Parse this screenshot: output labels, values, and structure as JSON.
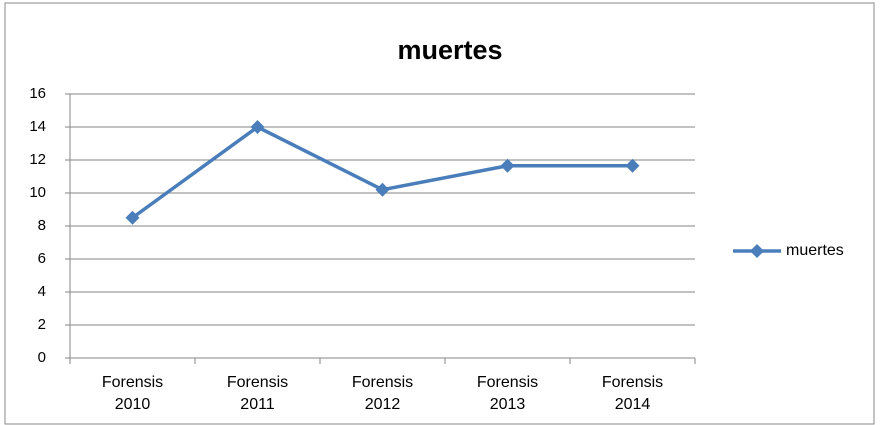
{
  "chart_data": {
    "type": "line",
    "title": "muertes",
    "categories": [
      "Forensis 2010",
      "Forensis 2011",
      "Forensis 2012",
      "Forensis 2013",
      "Forensis 2014"
    ],
    "series": [
      {
        "name": "muertes",
        "color": "#4a7ebb",
        "values": [
          8.5,
          14,
          10.2,
          11.65,
          11.65
        ]
      }
    ],
    "ylim": [
      0,
      16
    ],
    "yticks": [
      0,
      2,
      4,
      6,
      8,
      10,
      12,
      14,
      16
    ],
    "grid": true,
    "legend": "right"
  }
}
